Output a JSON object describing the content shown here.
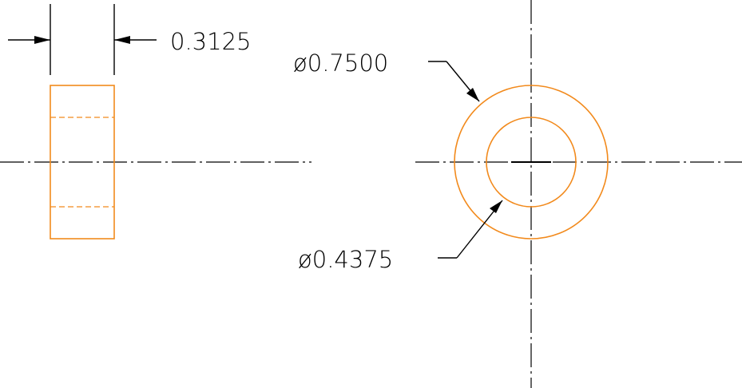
{
  "colors": {
    "part_outline": "#f28a1c",
    "dimension": "#000000",
    "centerline": "#000000",
    "background": "#ffffff"
  },
  "dimensions": {
    "width": {
      "label": "0.3125"
    },
    "outer_diameter": {
      "label": "ø0.7500"
    },
    "inner_diameter": {
      "label": "ø0.4375"
    }
  }
}
